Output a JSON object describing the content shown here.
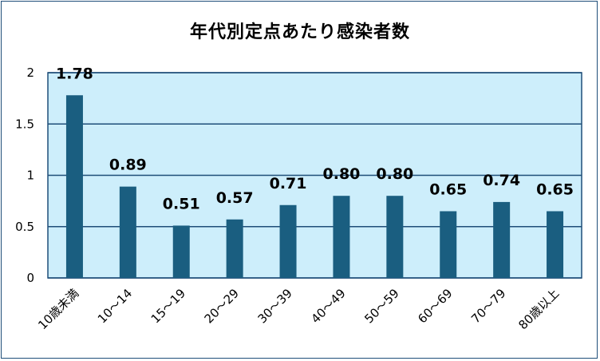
{
  "chart_data": {
    "type": "bar",
    "title": "年代別定点あたり感染者数",
    "categories": [
      "10歳未満",
      "10～14",
      "15～19",
      "20～29",
      "30～39",
      "40～49",
      "50～59",
      "60～69",
      "70～79",
      "80歳以上"
    ],
    "values": [
      1.78,
      0.89,
      0.51,
      0.57,
      0.71,
      0.8,
      0.8,
      0.65,
      0.74,
      0.65
    ],
    "data_labels": [
      "1.78",
      "0.89",
      "0.51",
      "0.57",
      "0.71",
      "0.80",
      "0.80",
      "0.65",
      "0.74",
      "0.65"
    ],
    "ylim": [
      0,
      2
    ],
    "yticks": [
      0,
      0.5,
      1,
      1.5,
      2
    ],
    "ytick_labels": [
      "0",
      "0.5",
      "1",
      "1.5",
      "2"
    ],
    "grid": true,
    "legend": "none",
    "colors": {
      "bar": "#1a5e80",
      "plot_bg": "#cdeefb",
      "grid": "#1f4e79",
      "frame": "#1f4e79"
    }
  }
}
